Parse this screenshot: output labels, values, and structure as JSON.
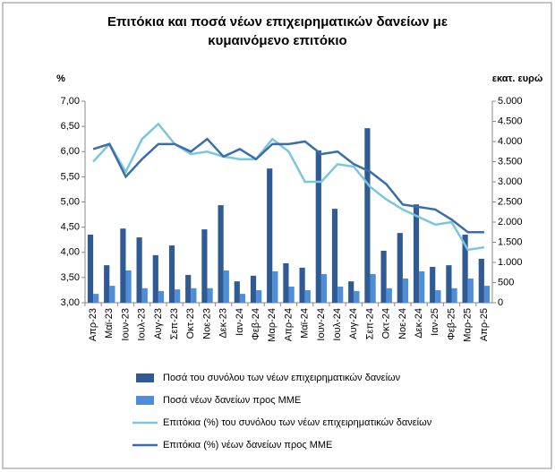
{
  "chart_data": {
    "type": "bar_line",
    "title_lines": [
      "Επιτόκια και ποσά νέων επιχειρηματικών δανείων με",
      "κυμαινόμενο επιτόκιο"
    ],
    "y_label": "%",
    "y2_label": "εκατ. ευρώ",
    "categories": [
      "Απρ-23",
      "Μαϊ-23",
      "Ιουν-23",
      "Ιουλ-23",
      "Αυγ-23",
      "Σεπ-23",
      "Οκτ-23",
      "Νοε-23",
      "Δεκ-23",
      "Ιαν-24",
      "Φεβ-24",
      "Μαρ-24",
      "Απρ-24",
      "Μαϊ-24",
      "Ιουν-24",
      "Ιουλ-24",
      "Αυγ-24",
      "Σεπ-24",
      "Οκτ-24",
      "Νοε-24",
      "Δεκ-24",
      "Ιαν-25",
      "Φεβ-25",
      "Μαρ-25",
      "Απρ-25"
    ],
    "series": [
      {
        "name": "Ποσά του συνόλου των νέων επιχειρηματικών δανείων",
        "type": "bar",
        "axis": "y2",
        "color": "#2f5a94",
        "values": [
          1690,
          930,
          1840,
          1620,
          1180,
          1420,
          690,
          1820,
          2420,
          530,
          670,
          3330,
          980,
          870,
          3780,
          2330,
          530,
          4330,
          1290,
          1730,
          2440,
          890,
          930,
          1690,
          1090
        ]
      },
      {
        "name": "Ποσά νέων δανείων προς ΜΜΕ",
        "type": "bar",
        "axis": "y2",
        "color": "#4f8dd6",
        "values": [
          220,
          420,
          800,
          360,
          290,
          330,
          360,
          360,
          800,
          220,
          310,
          780,
          400,
          310,
          710,
          400,
          290,
          710,
          360,
          600,
          780,
          310,
          360,
          600,
          420
        ]
      },
      {
        "name": "Επιτόκια (%) του συνόλου των νέων επιχειρηματικών δανείων",
        "type": "line",
        "color": "#7cc6dd",
        "values": [
          5.8,
          6.15,
          5.6,
          6.25,
          6.55,
          6.15,
          5.95,
          6.0,
          5.9,
          5.85,
          5.85,
          6.25,
          6.0,
          5.4,
          5.4,
          5.75,
          5.7,
          5.3,
          5.05,
          4.85,
          4.7,
          4.55,
          4.6,
          4.05,
          4.1
        ]
      },
      {
        "name": "Επιτόκια (%) νέων δανείων προς ΜΜΕ",
        "type": "line",
        "color": "#3b6ea9",
        "values": [
          6.05,
          6.15,
          5.5,
          5.85,
          6.15,
          6.15,
          6.0,
          6.25,
          5.9,
          6.05,
          5.85,
          6.15,
          6.15,
          6.2,
          5.95,
          6.0,
          5.75,
          5.6,
          5.35,
          4.95,
          4.9,
          4.85,
          4.65,
          4.4,
          4.4
        ]
      }
    ],
    "ylim": [
      3,
      7
    ],
    "yticks": [
      {
        "value": 3,
        "label": "3,00"
      },
      {
        "value": 3.5,
        "label": "3,50"
      },
      {
        "value": 4,
        "label": "4,00"
      },
      {
        "value": 4.5,
        "label": "4,50"
      },
      {
        "value": 5,
        "label": "5,00"
      },
      {
        "value": 5.5,
        "label": "5,50"
      },
      {
        "value": 6,
        "label": "6,00"
      },
      {
        "value": 6.5,
        "label": "6,50"
      },
      {
        "value": 7,
        "label": "7,00"
      }
    ],
    "y2lim": [
      0,
      5000
    ],
    "y2ticks": [
      0,
      500,
      {
        "value": 1000,
        "label": "1.000"
      },
      {
        "value": 1500,
        "label": "1.500"
      },
      {
        "value": 2000,
        "label": "2.000"
      },
      {
        "value": 2500,
        "label": "2.500"
      },
      {
        "value": 3000,
        "label": "3.000"
      },
      {
        "value": 3500,
        "label": "3.500"
      },
      {
        "value": 4000,
        "label": "4.000"
      },
      {
        "value": 4500,
        "label": "4.500"
      },
      {
        "value": 5000,
        "label": "5.000"
      }
    ],
    "grid": false
  }
}
